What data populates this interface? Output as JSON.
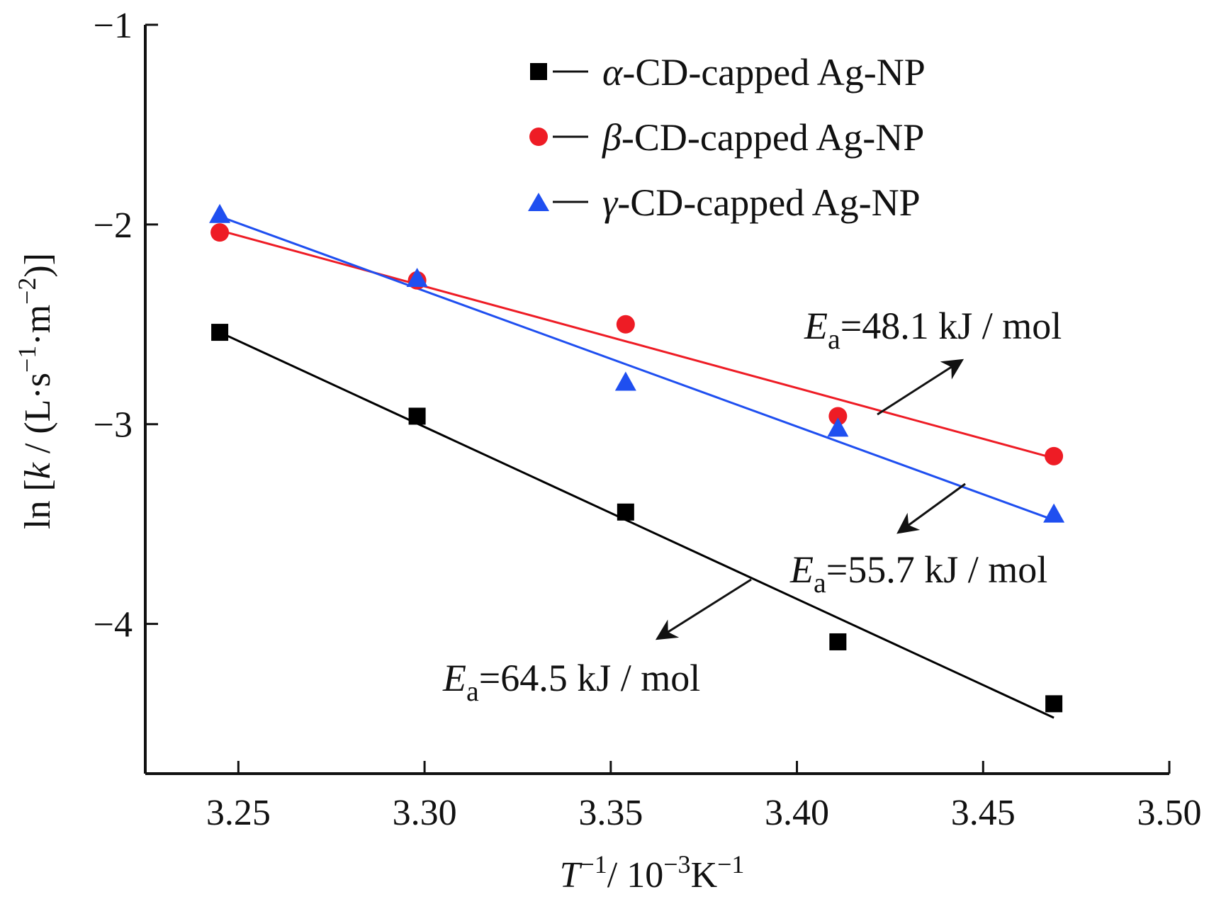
{
  "chart_data": {
    "type": "scatter",
    "xlabel": {
      "var": "T",
      "exp1": "−1",
      "mid": "/ 10",
      "exp2": "−3",
      "unit": "K",
      "exp3": "−1"
    },
    "ylabel": {
      "pre": "ln [",
      "var": "k",
      "mid": " / (L·s",
      "exp1": "−1",
      "dot": "·m",
      "exp2": "−2",
      "post": ")]"
    },
    "xlim": [
      3.225,
      3.5
    ],
    "ylim": [
      -4.75,
      -1
    ],
    "x_ticks": [
      3.25,
      3.3,
      3.35,
      3.4,
      3.45,
      3.5
    ],
    "x_tick_labels": [
      "3.25",
      "3.30",
      "3.35",
      "3.40",
      "3.45",
      "3.50"
    ],
    "y_ticks": [
      -1,
      -2,
      -3,
      -4
    ],
    "y_tick_labels": [
      "−1",
      "−2",
      "−3",
      "−4"
    ],
    "grid": false,
    "legend_position": "top-right",
    "series": [
      {
        "name": "-CD-capped Ag-NP",
        "greek": "α",
        "color": "#000000",
        "marker": "square",
        "x": [
          3.245,
          3.298,
          3.354,
          3.411,
          3.469
        ],
        "y": [
          -2.54,
          -2.96,
          -3.44,
          -4.09,
          -4.4
        ],
        "fit": {
          "x": [
            3.245,
            3.469
          ],
          "y": [
            -2.54,
            -4.47
          ]
        },
        "ea_label": {
          "sym": "E",
          "sub": "a",
          "text": "=64.5 kJ / mol"
        }
      },
      {
        "name": "-CD-capped Ag-NP",
        "greek": "β",
        "color": "#ee1c25",
        "marker": "circle",
        "x": [
          3.245,
          3.298,
          3.354,
          3.411,
          3.469
        ],
        "y": [
          -2.04,
          -2.28,
          -2.5,
          -2.96,
          -3.16
        ],
        "fit": {
          "x": [
            3.245,
            3.469
          ],
          "y": [
            -2.03,
            -3.17
          ]
        },
        "ea_label": {
          "sym": "E",
          "sub": "a",
          "text": "=48.1 kJ / mol"
        }
      },
      {
        "name": "-CD-capped Ag-NP",
        "greek": "γ",
        "color": "#1f4ff0",
        "marker": "triangle",
        "x": [
          3.245,
          3.298,
          3.354,
          3.411,
          3.469
        ],
        "y": [
          -1.95,
          -2.27,
          -2.79,
          -3.02,
          -3.45
        ],
        "fit": {
          "x": [
            3.245,
            3.469
          ],
          "y": [
            -1.96,
            -3.48
          ]
        },
        "ea_label": {
          "sym": "E",
          "sub": "a",
          "text": "=55.7 kJ / mol"
        }
      }
    ]
  }
}
